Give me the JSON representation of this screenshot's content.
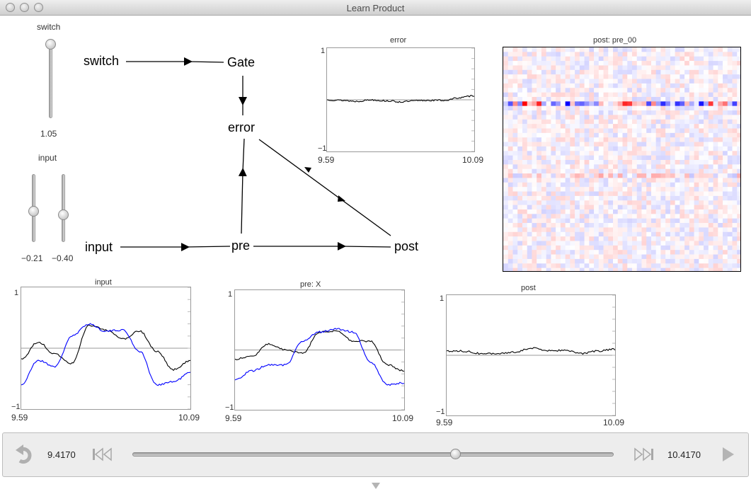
{
  "window": {
    "title": "Learn Product"
  },
  "switch_slider": {
    "label": "switch",
    "value": "1.05",
    "level": 1.0
  },
  "input_sliders": {
    "label": "input",
    "values": [
      "−0.21",
      "−0.40"
    ],
    "levels": [
      0.45,
      0.4
    ]
  },
  "network": {
    "nodes": {
      "switch": "switch",
      "gate": "Gate",
      "error": "error",
      "input": "input",
      "pre": "pre",
      "post": "post"
    }
  },
  "plots": {
    "error": {
      "title": "error",
      "ymax": "1",
      "ymin": "−1",
      "xmin": "9.59",
      "xmax": "10.09"
    },
    "input": {
      "title": "input",
      "ymax": "1",
      "ymin": "−1",
      "xmin": "9.59",
      "xmax": "10.09"
    },
    "pre": {
      "title": "pre: X",
      "ymax": "1",
      "ymin": "−1",
      "xmin": "9.59",
      "xmax": "10.09"
    },
    "post": {
      "title": "post",
      "ymax": "1",
      "ymin": "−1",
      "xmin": "9.59",
      "xmax": "10.09"
    }
  },
  "heatmap": {
    "title": "post: pre_00"
  },
  "playback": {
    "start": "9.4170",
    "end": "10.4170",
    "position": 0.67
  },
  "colors": {
    "series_black": "#000000",
    "series_blue": "#0000ff",
    "heat_pos": "#ff0000",
    "heat_neg": "#0000ff"
  },
  "icons": {
    "back": "undo-arrow-icon",
    "skip_back": "skip-back-icon",
    "skip_forward": "skip-forward-icon",
    "play": "play-icon",
    "collapse": "triangle-down-icon"
  },
  "chart_data": [
    {
      "type": "line",
      "title": "error",
      "xlim": [
        9.59,
        10.09
      ],
      "ylim": [
        -1,
        1
      ],
      "x": [
        9.59,
        9.64,
        9.69,
        9.74,
        9.79,
        9.84,
        9.89,
        9.94,
        9.99,
        10.04,
        10.09
      ],
      "series": [
        {
          "color": "#000000",
          "values": [
            0.0,
            -0.01,
            -0.03,
            0.0,
            -0.02,
            -0.04,
            -0.02,
            -0.01,
            -0.01,
            0.04,
            0.08
          ]
        }
      ]
    },
    {
      "type": "line",
      "title": "input",
      "xlim": [
        9.59,
        10.09
      ],
      "ylim": [
        -1,
        1
      ],
      "x": [
        9.59,
        9.64,
        9.69,
        9.74,
        9.79,
        9.84,
        9.89,
        9.94,
        9.99,
        10.04,
        10.09
      ],
      "series": [
        {
          "color": "#000000",
          "values": [
            -0.18,
            0.1,
            -0.1,
            -0.25,
            0.38,
            0.3,
            0.15,
            0.28,
            -0.05,
            -0.35,
            -0.2
          ]
        },
        {
          "color": "#0000ff",
          "values": [
            -0.6,
            -0.2,
            -0.3,
            0.2,
            0.4,
            0.28,
            0.3,
            -0.05,
            -0.6,
            -0.55,
            -0.4
          ]
        }
      ]
    },
    {
      "type": "line",
      "title": "pre: X",
      "xlim": [
        9.59,
        10.09
      ],
      "ylim": [
        -1,
        1
      ],
      "x": [
        9.59,
        9.64,
        9.69,
        9.74,
        9.79,
        9.84,
        9.89,
        9.94,
        9.99,
        10.04,
        10.09
      ],
      "series": [
        {
          "color": "#000000",
          "values": [
            -0.15,
            -0.1,
            0.1,
            0.0,
            -0.05,
            0.3,
            0.32,
            0.15,
            0.15,
            -0.25,
            -0.35
          ]
        },
        {
          "color": "#0000ff",
          "values": [
            -0.5,
            -0.35,
            -0.25,
            -0.25,
            0.15,
            0.3,
            0.35,
            0.3,
            -0.2,
            -0.58,
            -0.55
          ]
        }
      ]
    },
    {
      "type": "line",
      "title": "post",
      "xlim": [
        9.59,
        10.09
      ],
      "ylim": [
        -1,
        1
      ],
      "x": [
        9.59,
        9.64,
        9.69,
        9.74,
        9.79,
        9.84,
        9.89,
        9.94,
        9.99,
        10.04,
        10.09
      ],
      "series": [
        {
          "color": "#000000",
          "values": [
            0.07,
            0.07,
            0.03,
            0.02,
            0.05,
            0.12,
            0.08,
            0.08,
            0.03,
            0.07,
            0.1
          ]
        }
      ]
    },
    {
      "type": "heatmap",
      "title": "post: pre_00"
    }
  ]
}
